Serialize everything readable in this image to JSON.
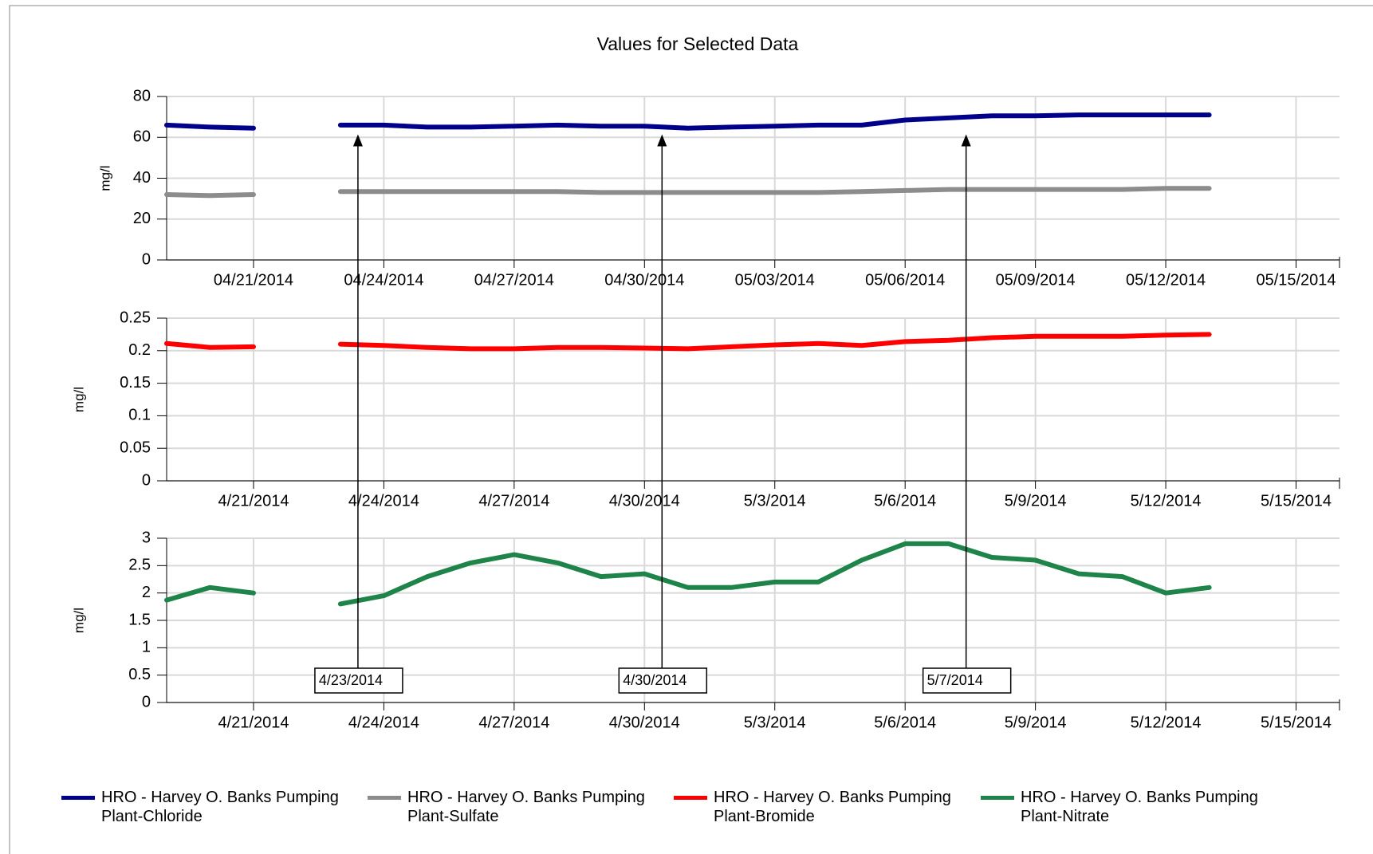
{
  "chart_data": [
    {
      "type": "line",
      "title": "Values for Selected Data",
      "y_label": "mg/l",
      "x": [
        "2014-04-19",
        "2014-04-20",
        "2014-04-21",
        "2014-04-22",
        "2014-04-23",
        "2014-04-24",
        "2014-04-25",
        "2014-04-26",
        "2014-04-27",
        "2014-04-28",
        "2014-04-29",
        "2014-04-30",
        "2014-05-01",
        "2014-05-02",
        "2014-05-03",
        "2014-05-04",
        "2014-05-05",
        "2014-05-06",
        "2014-05-07",
        "2014-05-08",
        "2014-05-09",
        "2014-05-10",
        "2014-05-11",
        "2014-05-12",
        "2014-05-13"
      ],
      "series": [
        {
          "name": "HRO - Harvey O. Banks Pumping Plant-Chloride",
          "color": "#00008b",
          "values": [
            66,
            65,
            64.5,
            null,
            66,
            66,
            65,
            65,
            65.5,
            66,
            65.5,
            65.5,
            64.5,
            65,
            65.5,
            66,
            66,
            68.5,
            69.5,
            70.5,
            70.5,
            71,
            71,
            71,
            71
          ]
        },
        {
          "name": "HRO - Harvey O. Banks Pumping Plant-Sulfate",
          "color": "#8c8c8c",
          "values": [
            32,
            31.5,
            32,
            null,
            33.5,
            33.5,
            33.5,
            33.5,
            33.5,
            33.5,
            33,
            33,
            33,
            33,
            33,
            33,
            33.5,
            34,
            34.5,
            34.5,
            34.5,
            34.5,
            34.5,
            35,
            35
          ]
        }
      ],
      "xlim": [
        "2014-04-19",
        "2014-05-16"
      ],
      "xticks": [
        {
          "value": "2014-04-21",
          "label": "04/21/2014"
        },
        {
          "value": "2014-04-24",
          "label": "04/24/2014"
        },
        {
          "value": "2014-04-27",
          "label": "04/27/2014"
        },
        {
          "value": "2014-04-30",
          "label": "04/30/2014"
        },
        {
          "value": "2014-05-03",
          "label": "05/03/2014"
        },
        {
          "value": "2014-05-06",
          "label": "05/06/2014"
        },
        {
          "value": "2014-05-09",
          "label": "05/09/2014"
        },
        {
          "value": "2014-05-12",
          "label": "05/12/2014"
        },
        {
          "value": "2014-05-15",
          "label": "05/15/2014"
        }
      ],
      "ylim": [
        0,
        80
      ],
      "yticks": [
        0,
        20,
        40,
        60,
        80
      ],
      "grid": true
    },
    {
      "type": "line",
      "y_label": "mg/l",
      "x": [
        "2014-04-19",
        "2014-04-20",
        "2014-04-21",
        "2014-04-22",
        "2014-04-23",
        "2014-04-24",
        "2014-04-25",
        "2014-04-26",
        "2014-04-27",
        "2014-04-28",
        "2014-04-29",
        "2014-04-30",
        "2014-05-01",
        "2014-05-02",
        "2014-05-03",
        "2014-05-04",
        "2014-05-05",
        "2014-05-06",
        "2014-05-07",
        "2014-05-08",
        "2014-05-09",
        "2014-05-10",
        "2014-05-11",
        "2014-05-12",
        "2014-05-13"
      ],
      "series": [
        {
          "name": "HRO - Harvey O. Banks Pumping Plant-Bromide",
          "color": "#ff0000",
          "values": [
            0.211,
            0.205,
            0.206,
            null,
            0.21,
            0.208,
            0.205,
            0.203,
            0.203,
            0.205,
            0.205,
            0.204,
            0.203,
            0.206,
            0.209,
            0.211,
            0.208,
            0.214,
            0.216,
            0.22,
            0.222,
            0.222,
            0.222,
            0.224,
            0.225
          ]
        }
      ],
      "xlim": [
        "2014-04-19",
        "2014-05-16"
      ],
      "xticks": [
        {
          "value": "2014-04-21",
          "label": "4/21/2014"
        },
        {
          "value": "2014-04-24",
          "label": "4/24/2014"
        },
        {
          "value": "2014-04-27",
          "label": "4/27/2014"
        },
        {
          "value": "2014-04-30",
          "label": "4/30/2014"
        },
        {
          "value": "2014-05-03",
          "label": "5/3/2014"
        },
        {
          "value": "2014-05-06",
          "label": "5/6/2014"
        },
        {
          "value": "2014-05-09",
          "label": "5/9/2014"
        },
        {
          "value": "2014-05-12",
          "label": "5/12/2014"
        },
        {
          "value": "2014-05-15",
          "label": "5/15/2014"
        }
      ],
      "ylim": [
        0,
        0.25
      ],
      "yticks": [
        0,
        0.05,
        0.1,
        0.15,
        0.2,
        0.25
      ],
      "grid": true
    },
    {
      "type": "line",
      "y_label": "mg/l",
      "x": [
        "2014-04-19",
        "2014-04-20",
        "2014-04-21",
        "2014-04-22",
        "2014-04-23",
        "2014-04-24",
        "2014-04-25",
        "2014-04-26",
        "2014-04-27",
        "2014-04-28",
        "2014-04-29",
        "2014-04-30",
        "2014-05-01",
        "2014-05-02",
        "2014-05-03",
        "2014-05-04",
        "2014-05-05",
        "2014-05-06",
        "2014-05-07",
        "2014-05-08",
        "2014-05-09",
        "2014-05-10",
        "2014-05-11",
        "2014-05-12",
        "2014-05-13"
      ],
      "series": [
        {
          "name": "HRO - Harvey O. Banks Pumping Plant-Nitrate",
          "color": "#1e8449",
          "values": [
            1.87,
            2.1,
            2.0,
            null,
            1.8,
            1.95,
            2.3,
            2.55,
            2.7,
            2.55,
            2.3,
            2.35,
            2.1,
            2.1,
            2.2,
            2.2,
            2.6,
            2.9,
            2.9,
            2.65,
            2.6,
            2.35,
            2.3,
            2.0,
            2.1
          ]
        }
      ],
      "xlim": [
        "2014-04-19",
        "2014-05-16"
      ],
      "xticks": [
        {
          "value": "2014-04-21",
          "label": "4/21/2014"
        },
        {
          "value": "2014-04-24",
          "label": "4/24/2014"
        },
        {
          "value": "2014-04-27",
          "label": "4/27/2014"
        },
        {
          "value": "2014-04-30",
          "label": "4/30/2014"
        },
        {
          "value": "2014-05-03",
          "label": "5/3/2014"
        },
        {
          "value": "2014-05-06",
          "label": "5/6/2014"
        },
        {
          "value": "2014-05-09",
          "label": "5/9/2014"
        },
        {
          "value": "2014-05-12",
          "label": "5/12/2014"
        },
        {
          "value": "2014-05-15",
          "label": "5/15/2014"
        }
      ],
      "ylim": [
        0,
        3
      ],
      "yticks": [
        0,
        0.5,
        1,
        1.5,
        2,
        2.5,
        3
      ],
      "grid": true,
      "annotations": [
        {
          "text": "4/23/2014",
          "x": "2014-04-23"
        },
        {
          "text": "4/30/2014",
          "x": "2014-04-30"
        },
        {
          "text": "5/7/2014",
          "x": "2014-05-07"
        }
      ]
    }
  ]
}
